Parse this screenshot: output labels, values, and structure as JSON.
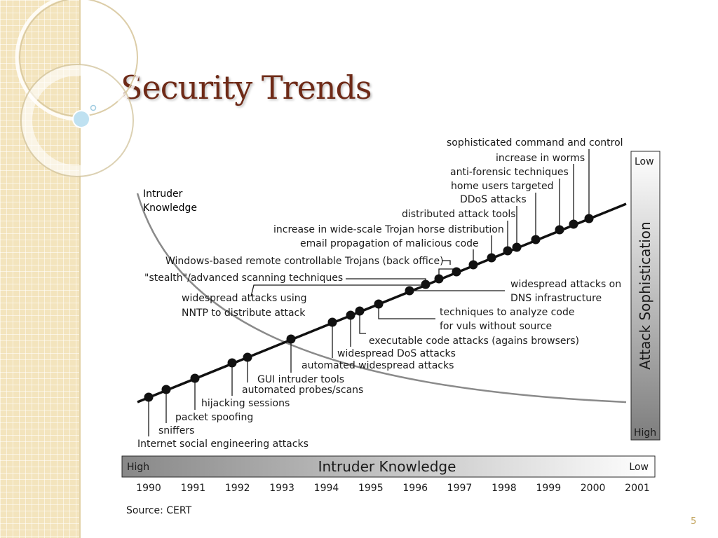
{
  "slide": {
    "title": "Security Trends",
    "page_number": "5"
  },
  "diagram": {
    "curve_label_line1": "Intruder",
    "curve_label_line2": "Knowledge",
    "y_axis": {
      "title": "Attack Sophistication",
      "top_label": "Low",
      "bottom_label": "High"
    },
    "x_axis": {
      "title": "Intruder Knowledge",
      "left_label": "High",
      "right_label": "Low"
    },
    "years": [
      "1990",
      "1991",
      "1992",
      "1993",
      "1994",
      "1995",
      "1996",
      "1997",
      "1998",
      "1999",
      "2000",
      "2001"
    ],
    "source": "Source: CERT",
    "labels": [
      {
        "text": "Internet social engineering attacks"
      },
      {
        "text": "sniffers"
      },
      {
        "text": "packet spoofing"
      },
      {
        "text": "hijacking sessions"
      },
      {
        "text": "automated probes/scans"
      },
      {
        "text": "GUI intruder tools"
      },
      {
        "text": "automated widespread attacks"
      },
      {
        "text": "widespread DoS attacks"
      },
      {
        "text": "executable code attacks (agains browsers)"
      },
      {
        "text": "techniques to analyze code"
      },
      {
        "text": "for vuls without source"
      },
      {
        "text": "widespread attacks on"
      },
      {
        "text": "DNS infrastructure"
      },
      {
        "text": "widespread attacks using"
      },
      {
        "text": "NNTP to distribute attack"
      },
      {
        "text": "\"stealth\"/advanced scanning techniques"
      },
      {
        "text": "Windows-based remote controllable Trojans (back office)"
      },
      {
        "text": "email propagation of malicious code"
      },
      {
        "text": "increase in wide-scale Trojan horse distribution"
      },
      {
        "text": "distributed attack tools"
      },
      {
        "text": "DDoS attacks"
      },
      {
        "text": "home users targeted"
      },
      {
        "text": "anti-forensic techniques"
      },
      {
        "text": "increase in worms"
      },
      {
        "text": "sophisticated command and control"
      }
    ]
  }
}
